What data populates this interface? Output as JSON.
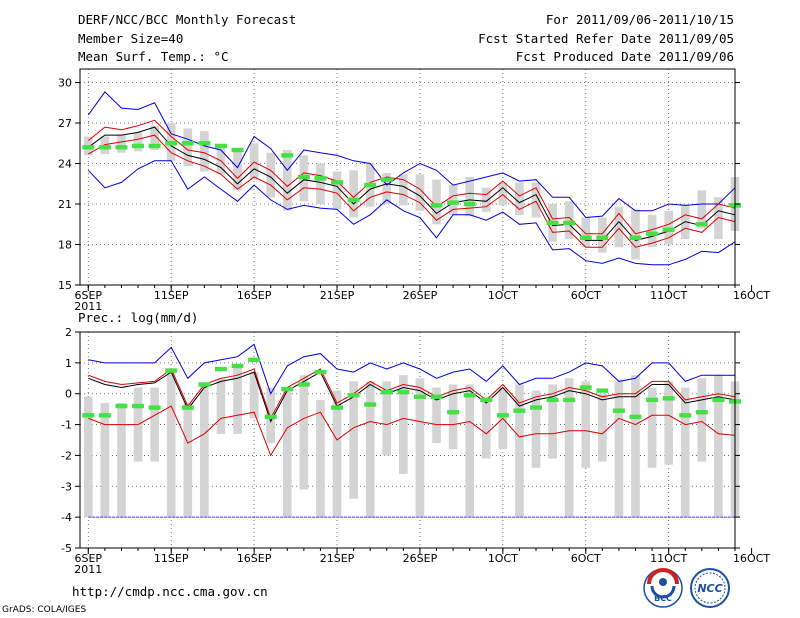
{
  "header": {
    "title": "DERF/NCC/BCC Monthly Forecast",
    "member_size": "Member Size=40",
    "variable": "Mean Surf. Temp.: °C",
    "period": "For 2011/09/06-2011/10/15",
    "started_refer": "Fcst Started Refer Date 2011/09/05",
    "produced": "Fcst Produced Date 2011/09/06"
  },
  "footer": {
    "url": "http://cmdp.ncc.cma.gov.cn",
    "grads": "GrADS: COLA/IGES"
  },
  "logos": [
    {
      "name": "BCC"
    },
    {
      "name": "NCC"
    }
  ],
  "colors": {
    "max_min": "#0000dd",
    "spread": "#dd0000",
    "ensemble_mean": "#000000",
    "observed": "#44e044",
    "box": "#d4d4d4"
  },
  "chart_data": [
    {
      "type": "line",
      "title": "Mean Surf. Temp.: °C",
      "ylim": [
        15,
        31
      ],
      "y_ticks": [
        30,
        27,
        24,
        21,
        18,
        15
      ],
      "x_day_range": [
        5.5,
        45
      ],
      "x_tick_labels": [
        {
          "day": 6,
          "label": "6SEP",
          "sub": "2011"
        },
        {
          "day": 11,
          "label": "11SEP"
        },
        {
          "day": 16,
          "label": "16SEP"
        },
        {
          "day": 21,
          "label": "21SEP"
        },
        {
          "day": 26,
          "label": "26SEP"
        },
        {
          "day": 31,
          "label": "1OCT"
        },
        {
          "day": 36,
          "label": "6OCT"
        },
        {
          "day": 41,
          "label": "11OCT"
        },
        {
          "day": 46,
          "label": "16OCT"
        }
      ],
      "box_low": [
        24.6,
        24.7,
        24.8,
        24.9,
        25.0,
        24.2,
        23.8,
        23.4,
        23.2,
        22.0,
        22.8,
        21.5,
        20.5,
        21.2,
        21.0,
        20.6,
        20.0,
        20.8,
        21.0,
        20.9,
        20.5,
        19.5,
        20.2,
        20.1,
        20.4,
        20.9,
        20.2,
        20.0,
        18.2,
        18.4,
        17.8,
        17.4,
        17.8,
        16.9,
        17.8,
        18.0,
        18.4,
        19.2,
        18.4,
        19.0
      ],
      "box_high": [
        26.0,
        26.0,
        26.1,
        26.3,
        26.8,
        27.0,
        26.6,
        26.4,
        25.2,
        25.0,
        25.5,
        24.8,
        25.0,
        24.6,
        24.0,
        23.4,
        23.5,
        24.0,
        23.3,
        23.2,
        23.2,
        22.8,
        22.4,
        23.0,
        22.2,
        22.6,
        22.6,
        22.6,
        21.0,
        21.2,
        20.0,
        20.0,
        20.8,
        20.6,
        20.2,
        20.5,
        21.0,
        22.0,
        21.5,
        23.0
      ],
      "series": [
        {
          "name": "max",
          "values": [
            27.6,
            29.3,
            28.1,
            28.0,
            28.5,
            26.2,
            25.8,
            25.3,
            25.0,
            23.7,
            26.0,
            25.1,
            23.5,
            25.0,
            24.8,
            24.6,
            24.2,
            24.0,
            22.4,
            23.3,
            24.0,
            23.5,
            22.4,
            22.7,
            23.0,
            23.3,
            22.7,
            22.8,
            21.5,
            21.5,
            20.0,
            20.1,
            21.4,
            20.5,
            20.5,
            21.0,
            20.9,
            21.0,
            21.0,
            22.2
          ]
        },
        {
          "name": "upper",
          "values": [
            25.7,
            26.7,
            26.5,
            26.8,
            27.2,
            26.0,
            25.0,
            24.8,
            24.2,
            22.9,
            24.1,
            23.5,
            22.3,
            23.3,
            23.1,
            22.7,
            21.5,
            22.6,
            23.0,
            22.8,
            22.1,
            20.8,
            21.6,
            21.8,
            21.7,
            22.7,
            21.6,
            22.2,
            19.9,
            20.0,
            18.8,
            18.8,
            20.3,
            18.8,
            19.1,
            19.5,
            20.2,
            19.9,
            21.0,
            20.7
          ]
        },
        {
          "name": "mean",
          "values": [
            25.2,
            26.1,
            26.1,
            26.3,
            26.7,
            25.3,
            24.6,
            24.3,
            23.7,
            22.5,
            23.6,
            23.0,
            21.8,
            22.8,
            22.6,
            22.3,
            21.0,
            22.1,
            22.5,
            22.3,
            21.6,
            20.3,
            21.1,
            21.3,
            21.2,
            22.2,
            21.1,
            21.7,
            19.4,
            19.5,
            18.3,
            18.3,
            19.7,
            18.3,
            18.6,
            19.0,
            19.7,
            19.4,
            20.5,
            20.2
          ]
        },
        {
          "name": "lower",
          "values": [
            24.7,
            25.4,
            25.6,
            25.8,
            26.1,
            24.8,
            24.2,
            23.8,
            23.2,
            22.1,
            23.0,
            22.4,
            21.3,
            22.2,
            22.1,
            21.8,
            20.5,
            21.5,
            21.9,
            21.7,
            21.1,
            19.8,
            20.6,
            20.7,
            20.8,
            21.7,
            20.6,
            21.2,
            18.9,
            19.0,
            17.8,
            17.8,
            19.2,
            17.8,
            18.1,
            18.5,
            19.2,
            18.9,
            20.0,
            19.7
          ]
        },
        {
          "name": "min",
          "values": [
            23.5,
            22.2,
            22.6,
            23.6,
            24.2,
            24.2,
            22.1,
            23.0,
            22.1,
            21.2,
            22.4,
            21.3,
            20.6,
            20.9,
            20.7,
            20.6,
            19.5,
            20.2,
            21.3,
            20.5,
            20.0,
            18.5,
            20.2,
            20.2,
            19.8,
            20.4,
            19.5,
            19.6,
            17.6,
            17.7,
            16.8,
            16.6,
            17.0,
            16.6,
            16.5,
            16.5,
            16.9,
            17.5,
            17.4,
            18.2
          ]
        }
      ],
      "observed": [
        25.2,
        25.2,
        25.2,
        25.3,
        25.3,
        25.5,
        25.5,
        25.5,
        25.3,
        25.0,
        null,
        null,
        24.6,
        23.0,
        22.9,
        22.6,
        21.3,
        22.4,
        22.8,
        null,
        null,
        20.9,
        21.1,
        21.0,
        null,
        null,
        null,
        null,
        19.6,
        19.6,
        18.5,
        18.5,
        null,
        18.5,
        18.8,
        19.1,
        null,
        19.5,
        null,
        20.9
      ]
    },
    {
      "type": "line",
      "title": "Prec.: log(mm/d)",
      "ylim": [
        -5,
        2
      ],
      "y_ticks": [
        2,
        1,
        0,
        -1,
        -2,
        -3,
        -4,
        -5
      ],
      "x_day_range": [
        5.5,
        45
      ],
      "x_tick_labels": [
        {
          "day": 6,
          "label": "6SEP",
          "sub": "2011"
        },
        {
          "day": 11,
          "label": "11SEP"
        },
        {
          "day": 16,
          "label": "16SEP"
        },
        {
          "day": 21,
          "label": "21SEP"
        },
        {
          "day": 26,
          "label": "26SEP"
        },
        {
          "day": 31,
          "label": "1OCT"
        },
        {
          "day": 36,
          "label": "6OCT"
        },
        {
          "day": 41,
          "label": "11OCT"
        },
        {
          "day": 46,
          "label": "16OCT"
        }
      ],
      "box_low": [
        -4,
        -4,
        -4,
        -2.2,
        -2.2,
        -4,
        -4,
        -4,
        -1.3,
        -1.3,
        -0.8,
        -1.6,
        -4,
        -3.1,
        -4,
        -4,
        -3.4,
        -4,
        -2,
        -2.6,
        -4,
        -1.6,
        -1.8,
        -4,
        -2.1,
        -1.8,
        -4,
        -2.4,
        -2.1,
        -4,
        -2.4,
        -2.2,
        -4,
        -4,
        -2.4,
        -2.3,
        -4,
        -2.2,
        -4,
        -4
      ],
      "box_high": [
        -0.1,
        -0.3,
        -0.3,
        0.2,
        0.2,
        0.7,
        -0.3,
        0.3,
        0.5,
        0.9,
        0.7,
        0.2,
        0.2,
        0.6,
        -0.2,
        0.1,
        0.4,
        0.4,
        0.4,
        0.6,
        0.5,
        0.2,
        0.3,
        0.3,
        -0.1,
        0.2,
        0.3,
        0.1,
        0.3,
        0.5,
        0.4,
        0,
        0.4,
        0.6,
        0.2,
        0.4,
        0.2,
        0.5,
        0.6,
        0.4
      ],
      "series": [
        {
          "name": "max",
          "values": [
            1.1,
            1.0,
            1.0,
            1.0,
            1.0,
            1.5,
            0.5,
            1.0,
            1.1,
            1.2,
            1.6,
            0.0,
            0.9,
            1.2,
            1.3,
            0.8,
            0.7,
            1.0,
            0.8,
            1.0,
            0.8,
            0.5,
            0.7,
            0.8,
            0.4,
            0.9,
            0.3,
            0.5,
            0.5,
            0.7,
            1.0,
            0.9,
            0.4,
            0.5,
            1.0,
            1.0,
            0.4,
            0.6,
            0.6,
            0.6
          ]
        },
        {
          "name": "upper",
          "values": [
            0.6,
            0.4,
            0.3,
            0.35,
            0.4,
            0.8,
            -0.4,
            0.3,
            0.5,
            0.6,
            0.8,
            -0.8,
            0.2,
            0.5,
            0.8,
            -0.3,
            0.0,
            0.4,
            0.1,
            0.3,
            0.2,
            -0.1,
            0.1,
            0.2,
            -0.2,
            0.3,
            -0.3,
            -0.1,
            0.0,
            0.2,
            0.1,
            -0.1,
            0.0,
            0.0,
            0.4,
            0.4,
            -0.2,
            -0.1,
            0.0,
            -0.1
          ]
        },
        {
          "name": "mean",
          "values": [
            0.5,
            0.3,
            0.2,
            0.3,
            0.35,
            0.7,
            -0.5,
            0.2,
            0.4,
            0.5,
            0.7,
            -0.9,
            0.1,
            0.4,
            0.7,
            -0.4,
            -0.1,
            0.3,
            0.0,
            0.2,
            0.1,
            -0.2,
            0.0,
            0.1,
            -0.3,
            0.2,
            -0.4,
            -0.2,
            -0.1,
            0.1,
            0.0,
            -0.2,
            -0.1,
            -0.1,
            0.3,
            0.3,
            -0.3,
            -0.2,
            -0.1,
            -0.2
          ]
        },
        {
          "name": "lower",
          "values": [
            -0.8,
            -1.0,
            -1.0,
            -1.0,
            -0.7,
            -0.4,
            -1.6,
            -1.3,
            -0.8,
            -0.7,
            -0.6,
            -2.0,
            -1.1,
            -0.8,
            -0.6,
            -1.5,
            -1.1,
            -0.9,
            -1.0,
            -0.8,
            -0.9,
            -1.0,
            -1.0,
            -0.9,
            -1.3,
            -0.8,
            -1.4,
            -1.3,
            -1.3,
            -1.2,
            -1.2,
            -1.3,
            -0.8,
            -1.0,
            -0.7,
            -0.7,
            -1.0,
            -0.9,
            -1.3,
            -1.35
          ]
        },
        {
          "name": "min",
          "values": [
            -4,
            -4,
            -4,
            -4,
            -4,
            -4,
            -4,
            -4,
            -4,
            -4,
            -4,
            -4,
            -4,
            -4,
            -4,
            -4,
            -4,
            -4,
            -4,
            -4,
            -4,
            -4,
            -4,
            -4,
            -4,
            -4,
            -4,
            -4,
            -4,
            -4,
            -4,
            -4,
            -4,
            -4,
            -4,
            -4,
            -4,
            -4,
            -4,
            -4
          ]
        }
      ],
      "observed": [
        -0.7,
        -0.7,
        -0.4,
        -0.4,
        -0.45,
        0.75,
        -0.45,
        0.3,
        0.8,
        0.9,
        1.1,
        -0.75,
        0.15,
        0.3,
        0.7,
        -0.45,
        -0.05,
        -0.35,
        0.05,
        0.05,
        -0.1,
        -0.1,
        -0.6,
        -0.05,
        -0.2,
        -0.7,
        -0.55,
        -0.45,
        -0.2,
        -0.2,
        0.2,
        0.1,
        -0.55,
        -0.75,
        -0.2,
        -0.15,
        -0.7,
        -0.6,
        -0.2,
        -0.25
      ]
    }
  ]
}
